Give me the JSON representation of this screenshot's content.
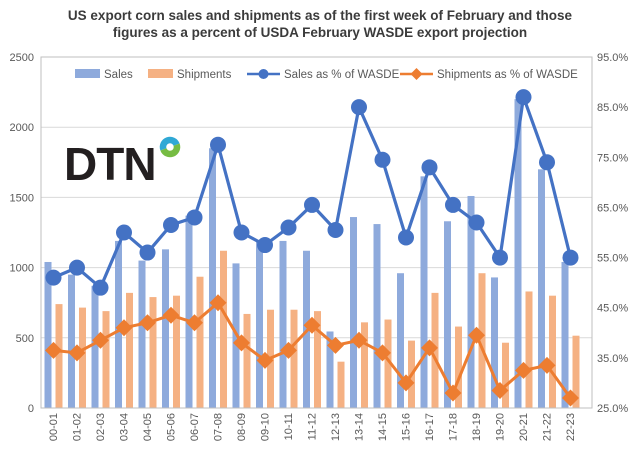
{
  "title": {
    "line1": "US export corn sales and shipments as of the first week of February and those",
    "line2": "figures as a percent of USDA February WASDE export projection"
  },
  "logo": {
    "text": "DTN",
    "text_color": "#231f20",
    "ring_top_color": "#2fa8d5",
    "ring_bottom_color": "#76bc43"
  },
  "style_colors": {
    "grid": "#d9d9d9",
    "plot_border": "#bfbfbf",
    "axis_text": "#595959",
    "title_text": "#3b3b3b",
    "background": "#ffffff"
  },
  "chart_data": {
    "type": "bar",
    "subtype": "combo-bar-line-dual-axis",
    "grid": "horizontal",
    "legend_position": "top",
    "categories": [
      "00-01",
      "01-02",
      "02-03",
      "03-04",
      "04-05",
      "05-06",
      "06-07",
      "07-08",
      "08-09",
      "09-10",
      "10-11",
      "11-12",
      "12-13",
      "13-14",
      "14-15",
      "15-16",
      "16-17",
      "17-18",
      "18-19",
      "19-20",
      "20-21",
      "21-22",
      "22-23"
    ],
    "series": [
      {
        "name": "Sales",
        "type": "bar",
        "axis": "left",
        "color": "#8eaadc",
        "values": [
          1040,
          950,
          870,
          1190,
          1050,
          1130,
          1370,
          1850,
          1030,
          1190,
          1190,
          1120,
          545,
          1360,
          1310,
          960,
          1650,
          1330,
          1510,
          930,
          2200,
          1700,
          1040
        ]
      },
      {
        "name": "Shipments",
        "type": "bar",
        "axis": "left",
        "color": "#f5b183",
        "values": [
          740,
          715,
          690,
          820,
          790,
          800,
          935,
          1120,
          670,
          700,
          700,
          690,
          330,
          610,
          630,
          480,
          820,
          580,
          960,
          465,
          830,
          800,
          515
        ]
      },
      {
        "name": "Sales as % of WASDE",
        "type": "line",
        "marker": "circle",
        "axis": "right",
        "color": "#4472c4",
        "values": [
          51,
          53,
          49,
          60,
          56,
          61.5,
          63,
          77.5,
          60,
          57.5,
          61,
          65.5,
          60.5,
          85,
          74.5,
          59,
          73,
          65.5,
          62,
          55,
          87,
          74,
          55
        ]
      },
      {
        "name": "Shipments as % of WASDE",
        "type": "line",
        "marker": "diamond",
        "axis": "right",
        "color": "#ed7d31",
        "values": [
          36.5,
          36,
          38.5,
          41,
          42,
          43.5,
          42,
          46,
          38,
          34.5,
          36.5,
          41.5,
          37.5,
          38.5,
          36,
          30,
          37,
          28,
          39.5,
          28.5,
          32.5,
          33.5,
          27
        ]
      }
    ],
    "left_axis": {
      "min": 0,
      "max": 2500,
      "ticks": [
        0,
        500,
        1000,
        1500,
        2000,
        2500
      ],
      "tick_labels": [
        "0",
        "500",
        "1000",
        "1500",
        "2000",
        "2500"
      ]
    },
    "right_axis": {
      "min": 25,
      "max": 95,
      "ticks": [
        25,
        35,
        45,
        55,
        65,
        75,
        85,
        95
      ],
      "tick_labels": [
        "25.0%",
        "35.0%",
        "45.0%",
        "55.0%",
        "65.0%",
        "75.0%",
        "85.0%",
        "95.0%"
      ]
    }
  }
}
